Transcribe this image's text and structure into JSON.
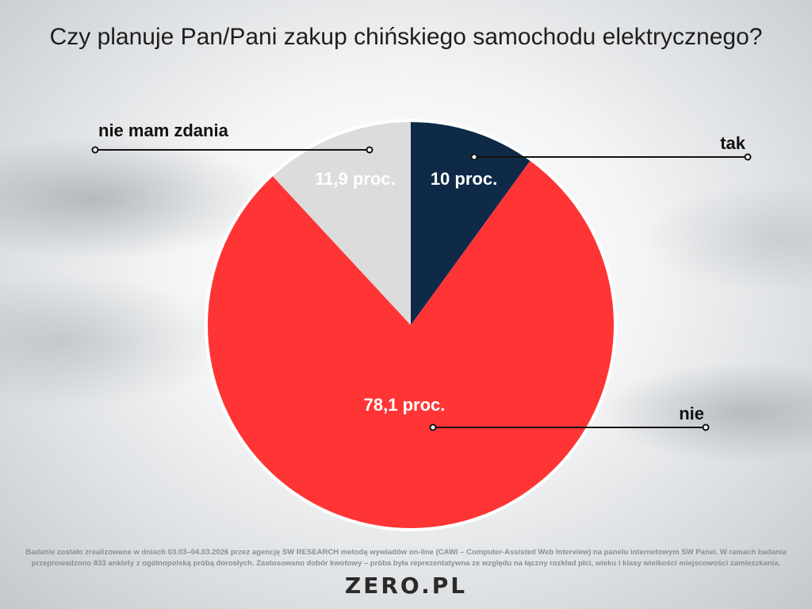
{
  "title": "Czy planuje Pan/Pani zakup chińskiego samochodu elektrycznego?",
  "chart_data": {
    "type": "pie",
    "title": "Czy planuje Pan/Pani zakup chińskiego samochodu elektrycznego?",
    "slices": [
      {
        "name": "tak",
        "value": 10,
        "value_label": "10 proc.",
        "color": "#0f2a47",
        "label_color": "#ffffff"
      },
      {
        "name": "nie",
        "value": 78.1,
        "value_label": "78,1 proc.",
        "color": "#ff3535",
        "label_color": "#ffffff"
      },
      {
        "name": "nie mam zdania",
        "value": 11.9,
        "value_label": "11,9 proc.",
        "color": "#dcdcdc",
        "label_color": "#ffffff"
      }
    ],
    "start": "12 o'clock",
    "direction": "clockwise"
  },
  "footnote": {
    "line1": "Badanie zostało zrealizowane w dniach 03.03–04.03.2026 przez agencję SW RESEARCH metodą wywiadów on-line (CAWI – Computer-Assisted Web Interview) na panelu internetowym SW Panel. W ramach badania",
    "line2": "przeprowadzono 833 ankiety z ogólnopolską próbą dorosłych. Zastosowano dobór kwotowy – próba była reprezentatywna ze względu na łączny rozkład płci, wieku i klasy wielkości miejscowości zamieszkania."
  },
  "logo": "ZERO.PL"
}
